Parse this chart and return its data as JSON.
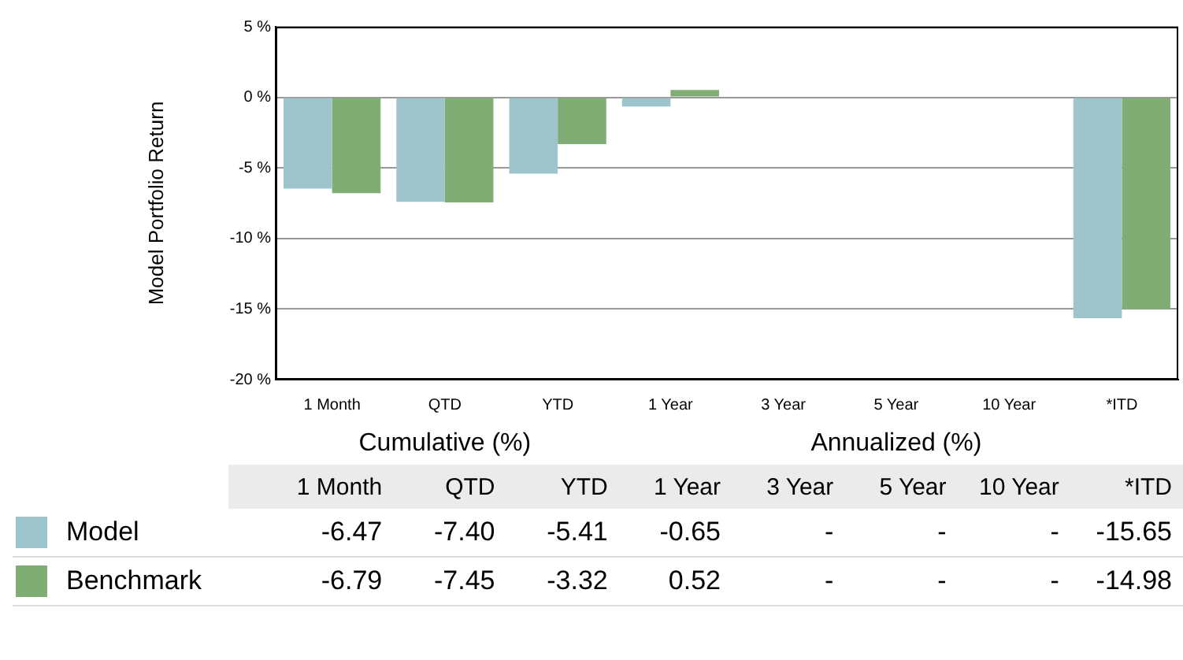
{
  "chart_data": {
    "type": "bar",
    "ylabel": "Model Portfolio Return",
    "categories": [
      "1 Month",
      "QTD",
      "YTD",
      "1 Year",
      "3 Year",
      "5 Year",
      "10 Year",
      "*ITD"
    ],
    "series": [
      {
        "name": "Model",
        "color": "#9fc5cc",
        "values": [
          -6.47,
          -7.4,
          -5.41,
          -0.65,
          null,
          null,
          null,
          -15.65
        ],
        "value_labels": [
          "-6.47",
          "-7.40",
          "-5.41",
          "-0.65",
          "-",
          "-",
          "-",
          "-15.65"
        ]
      },
      {
        "name": "Benchmark",
        "color": "#80ad74",
        "values": [
          -6.79,
          -7.45,
          -3.32,
          0.52,
          null,
          null,
          null,
          -14.98
        ],
        "value_labels": [
          "-6.79",
          "-7.45",
          "-3.32",
          "0.52",
          "-",
          "-",
          "-",
          "-14.98"
        ]
      }
    ],
    "ylim": [
      -20,
      5
    ],
    "yticks": [
      {
        "value": -20,
        "label": "-20 %"
      },
      {
        "value": -15,
        "label": "-15 %"
      },
      {
        "value": -10,
        "label": "-10 %"
      },
      {
        "value": -5,
        "label": "-5 %"
      },
      {
        "value": 0,
        "label": "0 %"
      },
      {
        "value": 5,
        "label": "5 %"
      }
    ],
    "grid": "y",
    "legend": "bottom left",
    "annotations": [
      "Cumulative (%)",
      "Annualized (%)"
    ]
  }
}
